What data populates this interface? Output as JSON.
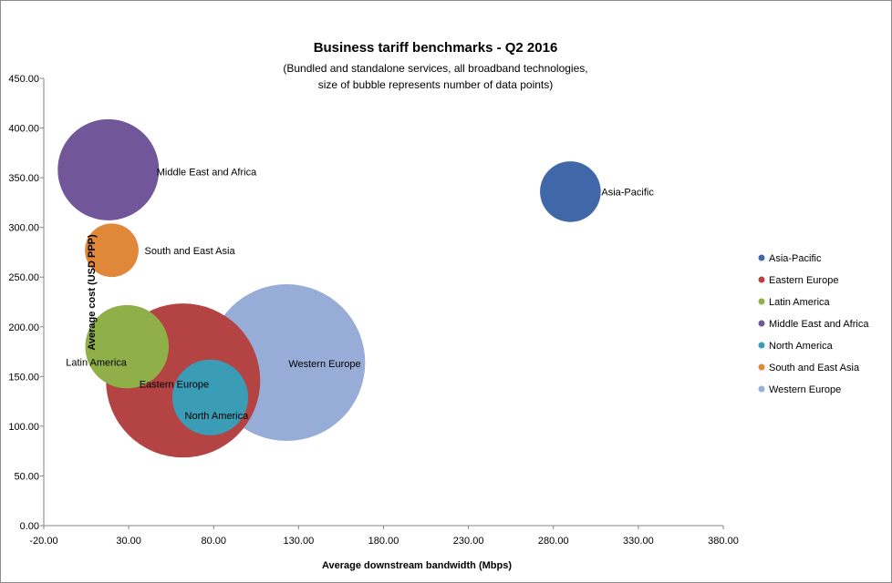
{
  "chart_data": {
    "type": "bubble",
    "title": "Business tariff benchmarks - Q2 2016",
    "subtitle_lines": [
      "(Bundled and standalone services, all broadband technologies,",
      "size of bubble represents number of data points)"
    ],
    "xlabel": "Average downstream bandwidth (Mbps)",
    "ylabel": "Average cost (USD PPP)",
    "xlim": [
      -20,
      380
    ],
    "ylim": [
      0,
      450
    ],
    "x_ticks": [
      "-20.00",
      "30.00",
      "80.00",
      "130.00",
      "180.00",
      "230.00",
      "280.00",
      "330.00",
      "380.00"
    ],
    "y_ticks": [
      "0.00",
      "50.00",
      "100.00",
      "150.00",
      "200.00",
      "250.00",
      "300.00",
      "350.00",
      "400.00",
      "450.00"
    ],
    "grid": false,
    "legend_position": "right",
    "series": [
      {
        "name": "Asia-Pacific",
        "x": 290,
        "y": 336,
        "size": 9,
        "color": "#4068a8"
      },
      {
        "name": "Eastern Europe",
        "x": 62,
        "y": 146,
        "size": 58,
        "color": "#b44444"
      },
      {
        "name": "Latin America",
        "x": 29,
        "y": 180,
        "size": 17,
        "color": "#8faf48"
      },
      {
        "name": "Middle East and Africa",
        "x": 18,
        "y": 358,
        "size": 25,
        "color": "#71569a"
      },
      {
        "name": "North America",
        "x": 78,
        "y": 129,
        "size": 14,
        "color": "#3b9cb6"
      },
      {
        "name": "South and East Asia",
        "x": 20,
        "y": 277,
        "size": 7,
        "color": "#e0873a"
      },
      {
        "name": "Western Europe",
        "x": 123,
        "y": 164,
        "size": 60,
        "color": "#97acd6"
      }
    ]
  }
}
